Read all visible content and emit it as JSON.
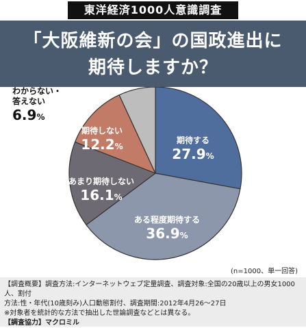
{
  "header": {
    "badge": "東洋経済1000人意識調査",
    "title_line1": "「大阪維新の会」の国政進出に",
    "title_line2": "期待しますか？"
  },
  "colors": {
    "header_bg": "#4a5a6f",
    "badge_bg": "#111111"
  },
  "chart_data": {
    "type": "pie",
    "title": "「大阪維新の会」の国政進出に期待しますか？",
    "slices": [
      {
        "label": "期待する",
        "value": 27.9,
        "value_text": "27.9",
        "unit": "%",
        "color": "#4f6e9e"
      },
      {
        "label": "ある程度期待する",
        "value": 36.9,
        "value_text": "36.9",
        "unit": "%",
        "color": "#8d97ac"
      },
      {
        "label": "あまり期待しない",
        "value": 16.1,
        "value_text": "16.1",
        "unit": "%",
        "color": "#6e6a73"
      },
      {
        "label": "期待しない",
        "value": 12.2,
        "value_text": "12.2",
        "unit": "%",
        "color": "#c17b66"
      },
      {
        "label": "わからない・答えない",
        "label_lines": [
          "わからない・",
          "答えない"
        ],
        "value": 6.9,
        "value_text": "6.9",
        "unit": "%",
        "color": "#bdbdbd"
      }
    ]
  },
  "note": "(n=1000、単一回答)",
  "footnote": {
    "line1": "【調査概要】調査方法:インターネットウェブ定量調査、調査対象:全国の20歳以上の男女1000人、割付",
    "line2": "方法:性・年代(10歳刻み)人口動態割付、調査期間:2012年4月26〜27日",
    "line3": "※対象者を統計的な方法で抽出した世論調査などとは異なる。",
    "line4": "【調査協力】マクロミル"
  }
}
